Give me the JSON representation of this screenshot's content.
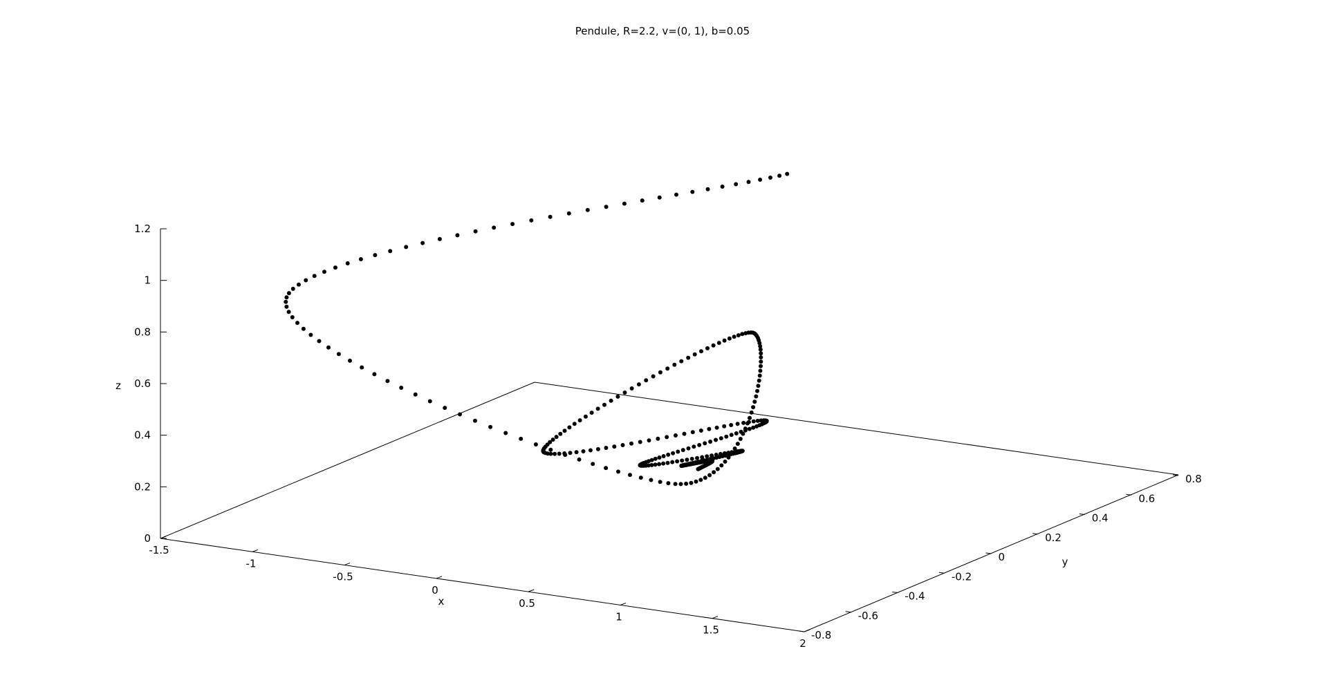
{
  "chart_data": {
    "type": "scatter",
    "projection": "3d",
    "title": "Pendule, R=2.2, v=(0, 1), b=0.05",
    "xlabel": "x",
    "ylabel": "y",
    "zlabel": "z",
    "xlim": [
      -1.5,
      2
    ],
    "ylim": [
      -0.8,
      0.8
    ],
    "zlim": [
      0,
      1.2
    ],
    "x_ticks": [
      "-1.5",
      "-1",
      "-0.5",
      "0",
      "0.5",
      "1",
      "1.5",
      "2"
    ],
    "y_ticks": [
      "-0.8",
      "-0.6",
      "-0.4",
      "-0.2",
      "0",
      "0.2",
      "0.4",
      "0.6",
      "0.8"
    ],
    "z_ticks": [
      "0",
      "0.2",
      "0.4",
      "0.6",
      "0.8",
      "1",
      "1.2"
    ],
    "grid": false,
    "legend": "none",
    "marker_color": "#000000",
    "series": [
      {
        "trajectory_keyframes": [
          {
            "t": 0,
            "x": 0.0,
            "y": 0.7,
            "z": 1.0
          },
          {
            "t": 30,
            "x": -1.45,
            "y": -0.3,
            "z": 0.75
          },
          {
            "t": 60,
            "x": 0.6,
            "y": -0.25,
            "z": 0.22
          },
          {
            "t": 95,
            "x": -0.25,
            "y": 0.75,
            "z": 0.34
          },
          {
            "t": 130,
            "x": -0.5,
            "y": 0.05,
            "z": 0.12
          },
          {
            "t": 160,
            "x": 0.2,
            "y": 0.45,
            "z": 0.16
          },
          {
            "t": 190,
            "x": -0.1,
            "y": 0.15,
            "z": 0.07
          },
          {
            "t": 215,
            "x": 0.2,
            "y": 0.35,
            "z": 0.08
          },
          {
            "t": 240,
            "x": 0.0,
            "y": 0.25,
            "z": 0.04
          },
          {
            "t": 265,
            "x": 0.1,
            "y": 0.3,
            "z": 0.05
          },
          {
            "t": 300,
            "x": 0.05,
            "y": 0.28,
            "z": 0.02
          }
        ],
        "samples_per_unit_t": 12
      }
    ]
  }
}
